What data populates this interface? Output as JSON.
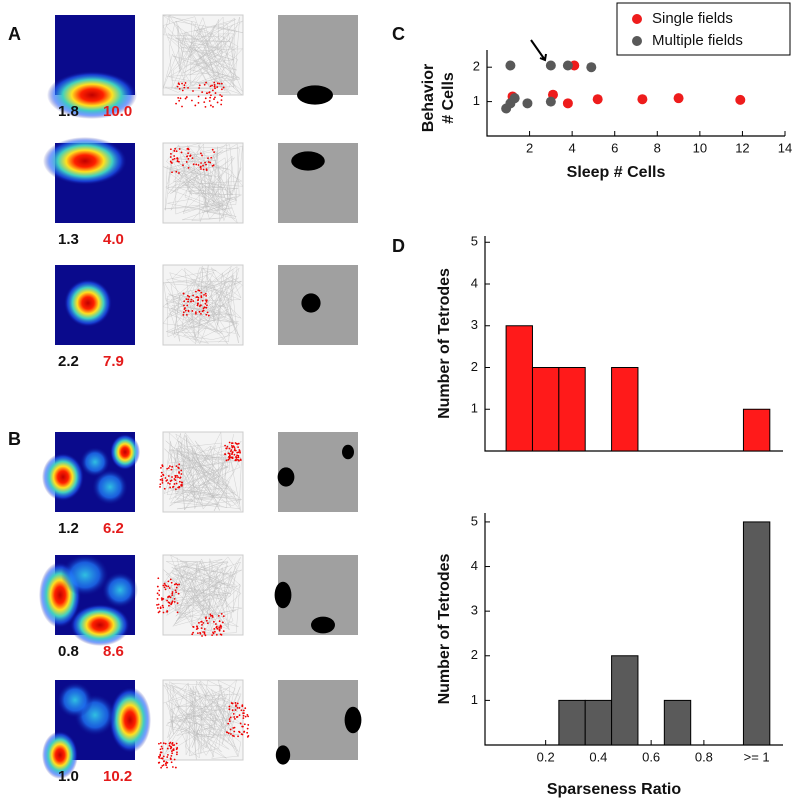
{
  "panels": [
    "A",
    "B",
    "C",
    "D"
  ],
  "rate_maps": [
    {
      "left": "1.8",
      "right": "10.0"
    },
    {
      "left": "1.3",
      "right": "4.0"
    },
    {
      "left": "2.2",
      "right": "7.9"
    },
    {
      "left": "1.2",
      "right": "6.2"
    },
    {
      "left": "0.8",
      "right": "8.6"
    },
    {
      "left": "1.0",
      "right": "10.2"
    }
  ],
  "chart_data": [
    {
      "type": "scatter",
      "xlabel": "Sleep # Cells",
      "ylabel": [
        "Behavior",
        "# Cells"
      ],
      "xlim": [
        0,
        14
      ],
      "xticks": [
        2,
        4,
        6,
        8,
        10,
        12,
        14
      ],
      "ylim": [
        0,
        2.5
      ],
      "yticks": [
        1,
        2
      ],
      "legend": "upper right",
      "series": [
        {
          "name": "Single fields",
          "color": "#ee1c1c",
          "x": [
            1.2,
            3.1,
            3.8,
            4.1,
            5.2,
            7.3,
            9.0,
            11.9
          ],
          "values": [
            1.15,
            1.2,
            0.95,
            2.05,
            1.07,
            1.07,
            1.1,
            1.05
          ]
        },
        {
          "name": "Multiple fields",
          "color": "#595959",
          "x": [
            0.9,
            1.1,
            1.3,
            1.1,
            1.9,
            3.0,
            3.0,
            3.8,
            4.9
          ],
          "values": [
            0.8,
            0.95,
            1.1,
            2.05,
            0.95,
            1.0,
            2.05,
            2.05,
            2.0
          ]
        }
      ]
    },
    {
      "type": "histogram",
      "ylabel": "Number of Tetrodes",
      "color": "#ff1a1a",
      "bins": [
        0.05,
        0.15,
        0.25,
        0.35,
        0.45,
        0.55,
        0.65,
        0.75,
        0.85,
        0.95,
        1.05
      ],
      "values": [
        3,
        2,
        2,
        0,
        2,
        0,
        0,
        0,
        0,
        1
      ],
      "xlim": [
        -0.03,
        1.1
      ],
      "ylim": [
        0,
        5.15
      ],
      "yticks": [
        1,
        2,
        3,
        4,
        5
      ]
    },
    {
      "type": "histogram",
      "ylabel": "Number of Tetrodes",
      "xlabel": "Sparseness Ratio",
      "color": "#5a5a5a",
      "bins": [
        0.05,
        0.15,
        0.25,
        0.35,
        0.45,
        0.55,
        0.65,
        0.75,
        0.85,
        0.95,
        1.05
      ],
      "values": [
        0,
        0,
        1,
        1,
        2,
        0,
        1,
        0,
        0,
        5
      ],
      "xlim": [
        -0.03,
        1.1
      ],
      "xticks": [
        0.2,
        0.4,
        0.6,
        0.8,
        {
          "value": 1,
          "label": ">= 1"
        }
      ],
      "ylim": [
        0,
        5.2
      ],
      "yticks": [
        1,
        2,
        3,
        4,
        5
      ]
    }
  ]
}
